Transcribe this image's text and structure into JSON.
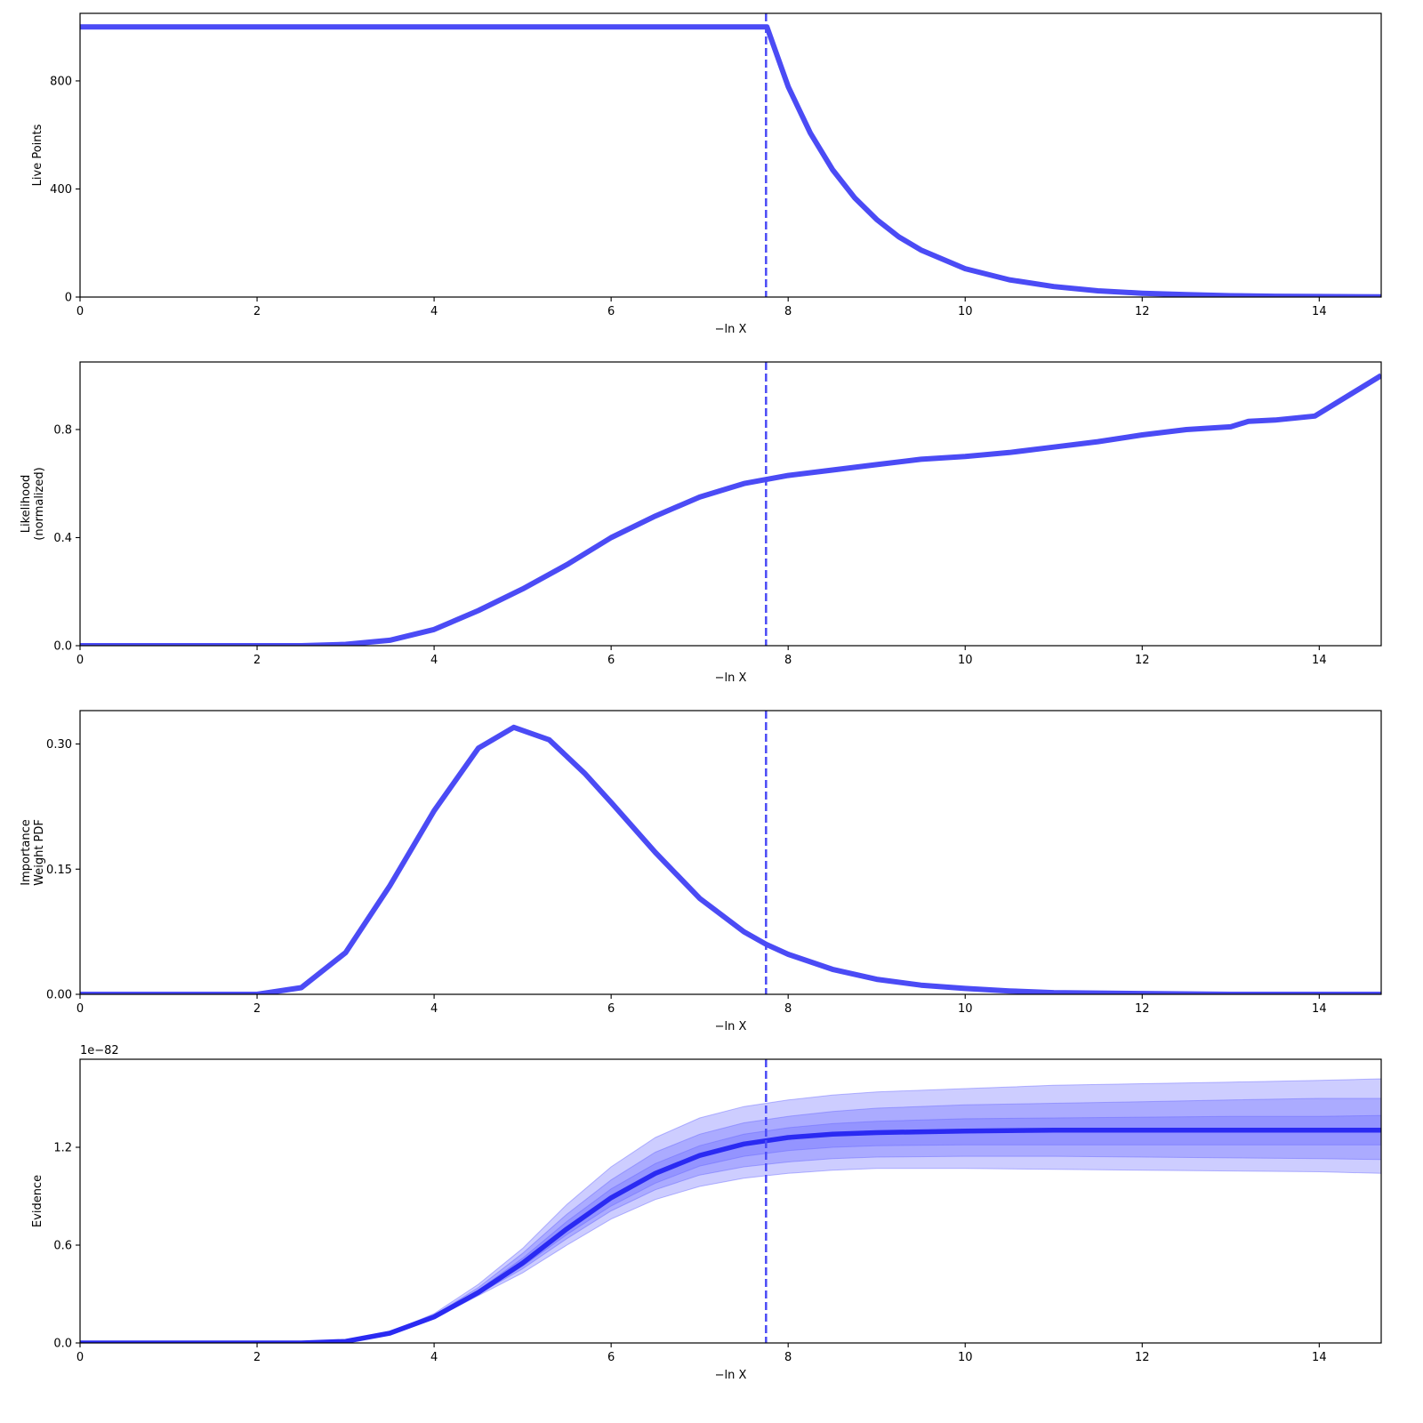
{
  "chart_data": [
    {
      "type": "line",
      "xlabel": "−ln X",
      "ylabel": "Live Points",
      "xlim": [
        0,
        14.7
      ],
      "ylim": [
        0,
        1050
      ],
      "xticks": [
        0,
        2,
        4,
        6,
        8,
        10,
        12,
        14
      ],
      "yticks": [
        0,
        400,
        800
      ],
      "ytick_labels": [
        "0",
        "400",
        "800"
      ],
      "vline": 7.75,
      "line_color": "#4b4bf5",
      "series": [
        {
          "x": [
            0,
            7.74,
            7.76,
            8.0,
            8.25,
            8.5,
            8.75,
            9.0,
            9.25,
            9.5,
            10.0,
            10.5,
            11.0,
            11.5,
            12.0,
            12.5,
            13.0,
            13.5,
            14.0,
            14.7
          ],
          "y": [
            1000,
            1000,
            1000,
            779,
            607,
            472,
            368,
            287,
            223,
            174,
            105,
            64,
            39,
            23,
            14,
            9,
            5,
            3,
            2,
            1
          ]
        }
      ]
    },
    {
      "type": "line",
      "xlabel": "−ln X",
      "ylabel": "Likelihood\n(normalized)",
      "xlim": [
        0,
        14.7
      ],
      "ylim": [
        0,
        1.05
      ],
      "xticks": [
        0,
        2,
        4,
        6,
        8,
        10,
        12,
        14
      ],
      "yticks": [
        0,
        0.4,
        0.8
      ],
      "ytick_labels": [
        "0.0",
        "0.4",
        "0.8"
      ],
      "vline": 7.75,
      "line_color": "#4b4bf5",
      "series": [
        {
          "x": [
            0,
            2.5,
            3.0,
            3.5,
            4.0,
            4.5,
            5.0,
            5.5,
            6.0,
            6.5,
            7.0,
            7.5,
            8.0,
            8.5,
            9.0,
            9.5,
            10.0,
            10.5,
            11.0,
            11.5,
            12.0,
            12.5,
            13.0,
            13.2,
            13.5,
            13.95,
            14.7
          ],
          "y": [
            0.0,
            0.0,
            0.005,
            0.02,
            0.06,
            0.13,
            0.21,
            0.3,
            0.4,
            0.48,
            0.55,
            0.6,
            0.63,
            0.65,
            0.67,
            0.69,
            0.7,
            0.715,
            0.735,
            0.755,
            0.78,
            0.8,
            0.81,
            0.83,
            0.835,
            0.85,
            1.0
          ]
        }
      ]
    },
    {
      "type": "line",
      "xlabel": "−ln X",
      "ylabel": "Importance\nWeight PDF",
      "xlim": [
        0,
        14.7
      ],
      "ylim": [
        0,
        0.34
      ],
      "xticks": [
        0,
        2,
        4,
        6,
        8,
        10,
        12,
        14
      ],
      "yticks": [
        0,
        0.15,
        0.3
      ],
      "ytick_labels": [
        "0.00",
        "0.15",
        "0.30"
      ],
      "vline": 7.75,
      "line_color": "#4b4bf5",
      "series": [
        {
          "x": [
            0,
            2.0,
            2.5,
            3.0,
            3.5,
            4.0,
            4.5,
            4.9,
            5.3,
            5.7,
            6.0,
            6.5,
            7.0,
            7.5,
            7.75,
            8.0,
            8.5,
            9.0,
            9.5,
            10.0,
            10.5,
            11.0,
            12.0,
            13.0,
            14.7
          ],
          "y": [
            0.0,
            0.0,
            0.008,
            0.05,
            0.13,
            0.22,
            0.295,
            0.32,
            0.305,
            0.265,
            0.23,
            0.17,
            0.115,
            0.075,
            0.06,
            0.048,
            0.03,
            0.018,
            0.011,
            0.007,
            0.004,
            0.002,
            0.001,
            0.0,
            0.0
          ]
        }
      ]
    },
    {
      "type": "area",
      "xlabel": "−ln X",
      "ylabel": "Evidence",
      "offset_text": "1e−82",
      "xlim": [
        0,
        14.7
      ],
      "ylim": [
        0,
        1.74
      ],
      "xticks": [
        0,
        2,
        4,
        6,
        8,
        10,
        12,
        14
      ],
      "yticks": [
        0,
        0.6,
        1.2
      ],
      "ytick_labels": [
        "0.0",
        "0.6",
        "1.2"
      ],
      "vline": 7.75,
      "line_color": "#2a2af2",
      "band_color": "#6666ff",
      "x": [
        0,
        2.5,
        3.0,
        3.5,
        4.0,
        4.5,
        5.0,
        5.5,
        6.0,
        6.5,
        7.0,
        7.5,
        8.0,
        8.5,
        9.0,
        10.0,
        11.0,
        12.0,
        13.0,
        14.0,
        14.7
      ],
      "median": [
        0,
        0.0,
        0.01,
        0.06,
        0.16,
        0.31,
        0.49,
        0.7,
        0.89,
        1.04,
        1.15,
        1.22,
        1.26,
        1.28,
        1.29,
        1.3,
        1.305,
        1.305,
        1.305,
        1.305,
        1.305
      ],
      "bands": [
        {
          "sigma": 3,
          "upper": [
            0,
            0.0,
            0.012,
            0.065,
            0.18,
            0.36,
            0.58,
            0.85,
            1.08,
            1.26,
            1.38,
            1.45,
            1.49,
            1.52,
            1.54,
            1.56,
            1.58,
            1.59,
            1.6,
            1.61,
            1.62
          ],
          "lower": [
            0,
            0.0,
            0.008,
            0.055,
            0.15,
            0.29,
            0.43,
            0.6,
            0.76,
            0.88,
            0.96,
            1.01,
            1.04,
            1.06,
            1.07,
            1.07,
            1.065,
            1.06,
            1.055,
            1.05,
            1.04
          ]
        },
        {
          "sigma": 2,
          "upper": [
            0,
            0.0,
            0.011,
            0.062,
            0.17,
            0.34,
            0.55,
            0.79,
            1.0,
            1.17,
            1.28,
            1.35,
            1.39,
            1.42,
            1.44,
            1.46,
            1.47,
            1.48,
            1.49,
            1.5,
            1.5
          ],
          "lower": [
            0,
            0.0,
            0.009,
            0.058,
            0.155,
            0.3,
            0.455,
            0.64,
            0.81,
            0.94,
            1.03,
            1.08,
            1.11,
            1.13,
            1.14,
            1.145,
            1.145,
            1.14,
            1.135,
            1.13,
            1.125
          ]
        },
        {
          "sigma": 1,
          "upper": [
            0,
            0.0,
            0.0105,
            0.061,
            0.165,
            0.325,
            0.52,
            0.745,
            0.945,
            1.1,
            1.21,
            1.28,
            1.32,
            1.345,
            1.36,
            1.375,
            1.38,
            1.385,
            1.39,
            1.39,
            1.395
          ],
          "lower": [
            0,
            0.0,
            0.0095,
            0.059,
            0.158,
            0.305,
            0.47,
            0.665,
            0.84,
            0.98,
            1.085,
            1.145,
            1.18,
            1.2,
            1.21,
            1.215,
            1.215,
            1.215,
            1.215,
            1.215,
            1.215
          ]
        }
      ]
    }
  ]
}
